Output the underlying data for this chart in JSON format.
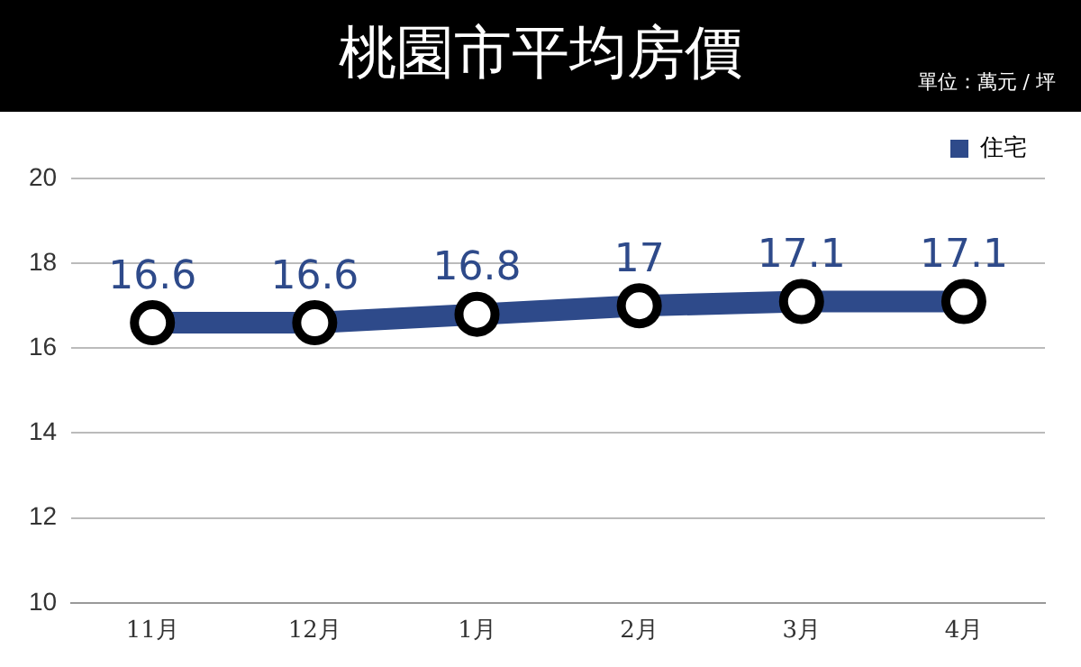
{
  "chart_data": {
    "type": "line",
    "title": "桃園市平均房價",
    "subtitle": "單位：萬元 / 坪",
    "categories": [
      "11月",
      "12月",
      "1月",
      "2月",
      "3月",
      "4月"
    ],
    "series": [
      {
        "name": "住宅",
        "color": "#2e4a8a",
        "values": [
          16.6,
          16.6,
          16.8,
          17,
          17.1,
          17.1
        ]
      }
    ],
    "ylim": [
      10,
      20
    ],
    "yticks": [
      10,
      12,
      14,
      16,
      18,
      20
    ],
    "grid": "y",
    "legend": "top right",
    "marker": "circle",
    "line_style": "solid",
    "data_labels": true
  }
}
